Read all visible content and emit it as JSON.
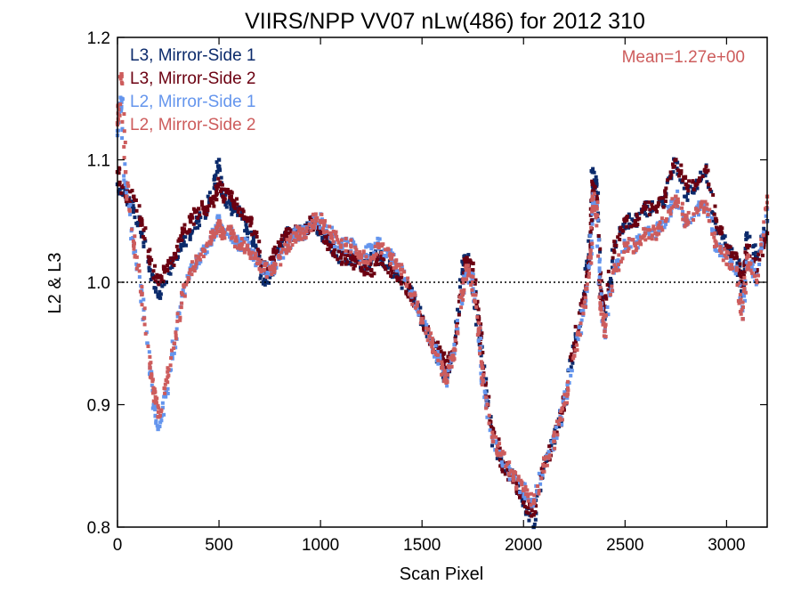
{
  "chart_data": {
    "type": "scatter",
    "title": "VIIRS/NPP VV07 nLw(486) for 2012 310",
    "xlabel": "Scan Pixel",
    "ylabel": "L2 & L3",
    "xlim": [
      0,
      3200
    ],
    "ylim": [
      0.8,
      1.2
    ],
    "x_ticks": [
      0,
      500,
      1000,
      1500,
      2000,
      2500,
      3000
    ],
    "x_tick_labels": [
      "0",
      "500",
      "1000",
      "1500",
      "2000",
      "2500",
      "3000"
    ],
    "y_ticks": [
      0.8,
      0.9,
      1.0,
      1.1,
      1.2
    ],
    "y_tick_labels": [
      "0.8",
      "0.9",
      "1.0",
      "1.1",
      "1.2"
    ],
    "reference_line": {
      "y": 1.0,
      "style": "dotted"
    },
    "annotation": {
      "text": "Mean=1.27e+00",
      "color": "#cd5c5c"
    },
    "grid": false,
    "legend_position": "top-left",
    "series": [
      {
        "name": "L3, Mirror-Side 1",
        "color": "#0b2a6b",
        "x": [
          0,
          40,
          80,
          120,
          160,
          200,
          240,
          280,
          320,
          360,
          400,
          440,
          480,
          500,
          520,
          560,
          600,
          640,
          680,
          720,
          760,
          800,
          840,
          880,
          920,
          960,
          1000,
          1050,
          1100,
          1150,
          1200,
          1250,
          1300,
          1350,
          1400,
          1450,
          1500,
          1550,
          1600,
          1620,
          1650,
          1700,
          1720,
          1750,
          1780,
          1800,
          1850,
          1900,
          1950,
          2000,
          2050,
          2100,
          2150,
          2200,
          2250,
          2300,
          2330,
          2340,
          2360,
          2380,
          2400,
          2450,
          2500,
          2550,
          2600,
          2650,
          2700,
          2750,
          2800,
          2850,
          2900,
          2950,
          3000,
          3050,
          3080,
          3100,
          3150,
          3200
        ],
        "y": [
          1.08,
          1.07,
          1.06,
          1.04,
          1.01,
          0.99,
          1.0,
          1.02,
          1.03,
          1.04,
          1.05,
          1.06,
          1.08,
          1.1,
          1.07,
          1.06,
          1.06,
          1.04,
          1.03,
          1.0,
          1.01,
          1.03,
          1.04,
          1.04,
          1.04,
          1.05,
          1.04,
          1.03,
          1.02,
          1.02,
          1.01,
          1.02,
          1.02,
          1.01,
          1.0,
          0.99,
          0.97,
          0.95,
          0.93,
          0.92,
          0.94,
          1.01,
          1.02,
          1.0,
          0.96,
          0.93,
          0.87,
          0.85,
          0.84,
          0.82,
          0.8,
          0.85,
          0.87,
          0.9,
          0.95,
          0.99,
          1.04,
          1.09,
          1.08,
          0.99,
          0.97,
          1.03,
          1.05,
          1.05,
          1.06,
          1.06,
          1.07,
          1.1,
          1.07,
          1.08,
          1.09,
          1.04,
          1.03,
          1.02,
          0.99,
          1.04,
          1.02,
          1.05
        ]
      },
      {
        "name": "L3, Mirror-Side 2",
        "color": "#6b0011",
        "x": [
          0,
          40,
          80,
          120,
          160,
          200,
          240,
          280,
          320,
          360,
          400,
          440,
          480,
          500,
          520,
          560,
          600,
          640,
          680,
          720,
          760,
          800,
          840,
          880,
          920,
          960,
          1000,
          1050,
          1100,
          1150,
          1200,
          1250,
          1300,
          1350,
          1400,
          1450,
          1500,
          1550,
          1600,
          1620,
          1650,
          1700,
          1720,
          1750,
          1780,
          1800,
          1850,
          1900,
          1950,
          2000,
          2050,
          2100,
          2150,
          2200,
          2250,
          2300,
          2330,
          2340,
          2360,
          2380,
          2400,
          2450,
          2500,
          2550,
          2600,
          2650,
          2700,
          2750,
          2800,
          2850,
          2900,
          2950,
          3000,
          3050,
          3080,
          3100,
          3150,
          3200
        ],
        "y": [
          1.09,
          1.07,
          1.07,
          1.05,
          1.02,
          1.0,
          1.01,
          1.02,
          1.04,
          1.05,
          1.06,
          1.06,
          1.07,
          1.08,
          1.07,
          1.07,
          1.06,
          1.05,
          1.04,
          1.01,
          1.02,
          1.03,
          1.04,
          1.04,
          1.04,
          1.05,
          1.04,
          1.03,
          1.02,
          1.02,
          1.01,
          1.01,
          1.02,
          1.01,
          1.0,
          0.99,
          0.97,
          0.95,
          0.94,
          0.93,
          0.94,
          1.0,
          1.02,
          1.01,
          0.97,
          0.93,
          0.88,
          0.85,
          0.84,
          0.82,
          0.81,
          0.85,
          0.87,
          0.9,
          0.95,
          0.99,
          1.03,
          1.08,
          1.07,
          0.99,
          0.98,
          1.03,
          1.05,
          1.05,
          1.06,
          1.06,
          1.07,
          1.1,
          1.08,
          1.08,
          1.09,
          1.05,
          1.03,
          1.02,
          1.0,
          1.03,
          1.01,
          1.04
        ]
      },
      {
        "name": "L2, Mirror-Side 1",
        "color": "#6495ed",
        "x": [
          0,
          20,
          40,
          80,
          120,
          160,
          180,
          200,
          240,
          280,
          320,
          360,
          400,
          440,
          480,
          500,
          520,
          560,
          600,
          640,
          680,
          720,
          760,
          800,
          840,
          880,
          920,
          960,
          1000,
          1050,
          1100,
          1150,
          1200,
          1250,
          1300,
          1350,
          1400,
          1450,
          1500,
          1550,
          1600,
          1620,
          1650,
          1700,
          1720,
          1750,
          1780,
          1800,
          1850,
          1900,
          1950,
          2000,
          2050,
          2100,
          2150,
          2200,
          2250,
          2300,
          2330,
          2340,
          2360,
          2380,
          2400,
          2450,
          2500,
          2550,
          2600,
          2650,
          2700,
          2750,
          2800,
          2850,
          2900,
          2950,
          3000,
          3050,
          3080,
          3100,
          3150,
          3200
        ],
        "y": [
          1.12,
          1.15,
          1.08,
          1.03,
          0.99,
          0.93,
          0.9,
          0.88,
          0.91,
          0.95,
          0.99,
          1.01,
          1.02,
          1.03,
          1.04,
          1.05,
          1.04,
          1.04,
          1.03,
          1.03,
          1.02,
          1.01,
          1.01,
          1.02,
          1.03,
          1.04,
          1.04,
          1.05,
          1.05,
          1.04,
          1.03,
          1.03,
          1.02,
          1.03,
          1.03,
          1.02,
          1.01,
          0.99,
          0.97,
          0.95,
          0.93,
          0.92,
          0.94,
          0.99,
          1.01,
          1.0,
          0.96,
          0.92,
          0.87,
          0.85,
          0.84,
          0.83,
          0.82,
          0.85,
          0.87,
          0.9,
          0.94,
          0.98,
          1.02,
          1.07,
          1.06,
          0.98,
          0.96,
          1.01,
          1.03,
          1.03,
          1.04,
          1.04,
          1.05,
          1.07,
          1.05,
          1.06,
          1.06,
          1.03,
          1.02,
          1.01,
          0.97,
          1.02,
          1.0,
          1.06
        ]
      },
      {
        "name": "L2, Mirror-Side 2",
        "color": "#cd5c5c",
        "x": [
          0,
          20,
          40,
          80,
          120,
          160,
          180,
          200,
          240,
          280,
          320,
          360,
          400,
          440,
          480,
          500,
          520,
          560,
          600,
          640,
          680,
          720,
          760,
          800,
          840,
          880,
          920,
          960,
          1000,
          1050,
          1100,
          1150,
          1200,
          1250,
          1300,
          1350,
          1400,
          1450,
          1500,
          1550,
          1600,
          1620,
          1650,
          1700,
          1720,
          1750,
          1780,
          1800,
          1850,
          1900,
          1950,
          2000,
          2050,
          2100,
          2150,
          2200,
          2250,
          2300,
          2330,
          2340,
          2360,
          2380,
          2400,
          2450,
          2500,
          2550,
          2600,
          2650,
          2700,
          2750,
          2800,
          2850,
          2900,
          2950,
          3000,
          3050,
          3080,
          3100,
          3150,
          3200
        ],
        "y": [
          1.13,
          1.17,
          1.09,
          1.03,
          0.99,
          0.93,
          0.91,
          0.89,
          0.92,
          0.95,
          0.99,
          1.01,
          1.02,
          1.03,
          1.04,
          1.05,
          1.04,
          1.04,
          1.03,
          1.03,
          1.02,
          1.01,
          1.01,
          1.02,
          1.03,
          1.04,
          1.04,
          1.05,
          1.05,
          1.04,
          1.03,
          1.03,
          1.02,
          1.02,
          1.03,
          1.02,
          1.01,
          0.99,
          0.97,
          0.95,
          0.93,
          0.92,
          0.94,
          0.99,
          1.01,
          1.0,
          0.96,
          0.92,
          0.87,
          0.86,
          0.84,
          0.83,
          0.82,
          0.85,
          0.87,
          0.9,
          0.94,
          0.98,
          1.02,
          1.07,
          1.06,
          0.98,
          0.96,
          1.01,
          1.03,
          1.03,
          1.04,
          1.04,
          1.05,
          1.07,
          1.05,
          1.06,
          1.06,
          1.03,
          1.02,
          1.01,
          0.97,
          1.02,
          1.0,
          1.07
        ]
      }
    ]
  }
}
